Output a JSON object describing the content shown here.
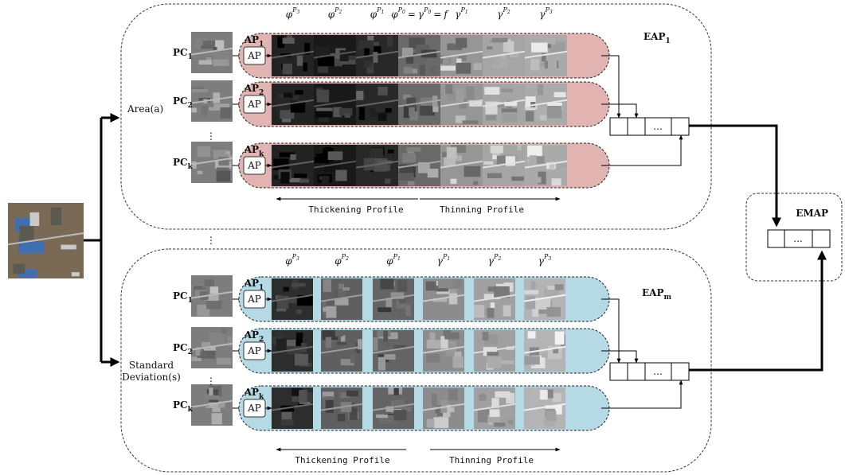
{
  "groups": [
    {
      "name_lines": [
        "Area(a)"
      ],
      "eap": {
        "base": "EAP",
        "sub": "1"
      },
      "profile_labels": [
        [
          {
            "b": "φ",
            "p": "P",
            "s": "3"
          }
        ],
        [
          {
            "b": "φ",
            "p": "P",
            "s": "2"
          }
        ],
        [
          {
            "b": "φ",
            "p": "P",
            "s": "1"
          }
        ],
        [
          {
            "b": "φ",
            "p": "P",
            "s": "0"
          },
          "=",
          {
            "b": "γ",
            "p": "P",
            "s": "0"
          },
          "=",
          "f"
        ],
        [
          {
            "b": "γ",
            "p": "P",
            "s": "1"
          }
        ],
        [
          {
            "b": "γ",
            "p": "P",
            "s": "2"
          }
        ],
        [
          {
            "b": "γ",
            "p": "P",
            "s": "3"
          }
        ]
      ],
      "rows": [
        {
          "pc": {
            "base": "PC",
            "sub": "1"
          },
          "ap": {
            "base": "AP",
            "sub": "1"
          }
        },
        {
          "pc": {
            "base": "PC",
            "sub": "2"
          },
          "ap": {
            "base": "AP",
            "sub": "2"
          }
        },
        {
          "pc": {
            "base": "PC",
            "sub": "k"
          },
          "ap": {
            "base": "AP",
            "sub": "k"
          }
        }
      ],
      "thickening": "Thickening Profile",
      "thinning": "Thinning Profile"
    },
    {
      "name_lines": [
        "Standard",
        "Deviation(s)"
      ],
      "eap": {
        "base": "EAP",
        "sub": "m"
      },
      "profile_labels": [
        [
          {
            "b": "φ",
            "p": "P",
            "s": "3"
          }
        ],
        [
          {
            "b": "φ",
            "p": "P",
            "s": "2"
          }
        ],
        [
          {
            "b": "φ",
            "p": "P",
            "s": "1"
          }
        ],
        [
          {
            "b": "γ",
            "p": "P",
            "s": "1"
          }
        ],
        [
          {
            "b": "γ",
            "p": "P",
            "s": "2"
          }
        ],
        [
          {
            "b": "γ",
            "p": "P",
            "s": "3"
          }
        ]
      ],
      "rows": [
        {
          "pc": {
            "base": "PC",
            "sub": "1"
          },
          "ap": {
            "base": "AP",
            "sub": "1"
          }
        },
        {
          "pc": {
            "base": "PC",
            "sub": "2"
          },
          "ap": {
            "base": "AP",
            "sub": "2"
          }
        },
        {
          "pc": {
            "base": "PC",
            "sub": "k"
          },
          "ap": {
            "base": "AP",
            "sub": "k"
          }
        }
      ],
      "thickening": "Thickening Profile",
      "thinning": "Thinning Profile"
    }
  ],
  "ap_box": "AP",
  "concat_ellipsis": "...",
  "vertical_ellipsis": "⋮",
  "emap": {
    "title": "EMAP",
    "ellipsis": "..."
  }
}
